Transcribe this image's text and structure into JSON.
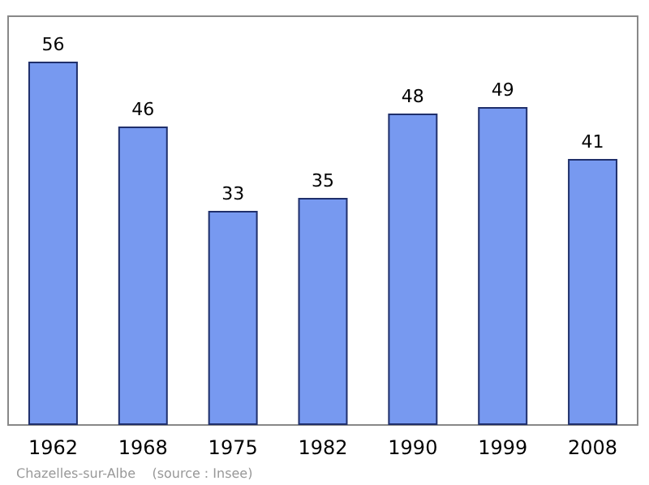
{
  "chart_data": {
    "type": "bar",
    "categories": [
      "1962",
      "1968",
      "1975",
      "1982",
      "1990",
      "1999",
      "2008"
    ],
    "values": [
      56,
      46,
      33,
      35,
      48,
      49,
      41
    ],
    "color": "#7799f0",
    "data_labels": true,
    "ylim": [
      0,
      63
    ],
    "tick_labels": "x",
    "grid": false,
    "annotations": [
      "Chazelles-sur-Albe    (source : Insee)"
    ]
  }
}
